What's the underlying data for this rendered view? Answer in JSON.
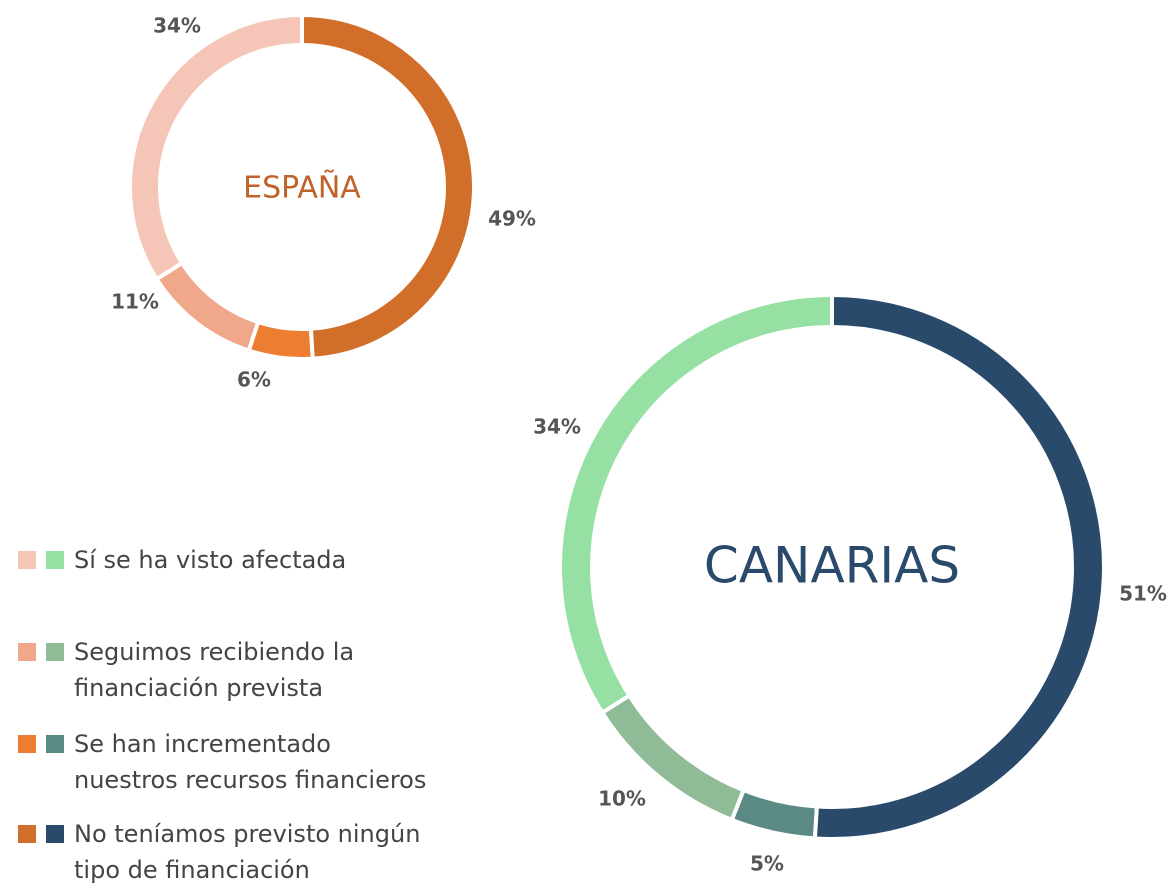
{
  "legend": [
    "Sí se ha visto afectada",
    "Seguimos recibiendo la financiación prevista",
    "Se han incrementado nuestros recursos financieros",
    "No teníamos previsto ningún tipo de financiación"
  ],
  "chart_data": [
    {
      "type": "donut",
      "title": "ESPAÑA",
      "title_color": "#c0622a",
      "values": [
        34,
        11,
        6,
        49
      ],
      "value_labels": [
        "34%",
        "11%",
        "6%",
        "49%"
      ],
      "colors": [
        "#f5c6b8",
        "#f0a88a",
        "#ed7d31",
        "#d06e2a"
      ]
    },
    {
      "type": "donut",
      "title": "CANARIAS",
      "title_color": "#2a4a6b",
      "values": [
        34,
        10,
        5,
        51
      ],
      "value_labels": [
        "34%",
        "10%",
        "5%",
        "51%"
      ],
      "colors": [
        "#95e0a2",
        "#8fbc97",
        "#5a8a83",
        "#2a4a6b"
      ]
    }
  ]
}
